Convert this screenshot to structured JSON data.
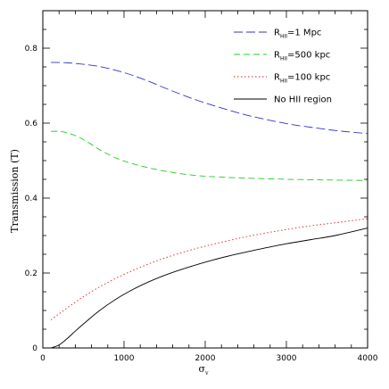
{
  "chart_data": {
    "type": "line",
    "xlabel": "σ",
    "xlabel_sub": "v",
    "ylabel": "Transmission (T)",
    "xlim": [
      0,
      4000
    ],
    "ylim": [
      0,
      0.9
    ],
    "xticks": [
      0,
      1000,
      2000,
      3000,
      4000
    ],
    "yticks": [
      0,
      0.2,
      0.4,
      0.6,
      0.8
    ],
    "ytick_labels": [
      "0",
      "0.2",
      "0.4",
      "0.6",
      "0.8"
    ],
    "grid": false,
    "legend_position": "top-right",
    "series": [
      {
        "name": "R_HII=1 Mpc",
        "legend_prefix": "R",
        "legend_sub": "HII",
        "legend_suffix": "=1  Mpc",
        "color": "#3333cc",
        "dash": "10,4",
        "x": [
          100,
          300,
          500,
          700,
          900,
          1100,
          1300,
          1500,
          1700,
          1900,
          2100,
          2300,
          2500,
          2700,
          2900,
          3100,
          3300,
          3500,
          3700,
          3900,
          4000
        ],
        "y": [
          0.762,
          0.761,
          0.757,
          0.751,
          0.741,
          0.728,
          0.712,
          0.694,
          0.677,
          0.661,
          0.647,
          0.634,
          0.622,
          0.612,
          0.603,
          0.595,
          0.589,
          0.583,
          0.578,
          0.574,
          0.572
        ]
      },
      {
        "name": "R_HII=500 kpc",
        "legend_prefix": "R",
        "legend_sub": "HII",
        "legend_suffix": "=500  kpc",
        "color": "#22cc22",
        "dash": "7,4",
        "x": [
          100,
          200,
          300,
          400,
          500,
          600,
          700,
          900,
          1100,
          1300,
          1500,
          1700,
          1900,
          2100,
          2400,
          2700,
          3000,
          3300,
          3600,
          4000
        ],
        "y": [
          0.578,
          0.578,
          0.574,
          0.567,
          0.556,
          0.543,
          0.529,
          0.507,
          0.492,
          0.481,
          0.472,
          0.465,
          0.46,
          0.457,
          0.454,
          0.452,
          0.45,
          0.449,
          0.448,
          0.447
        ]
      },
      {
        "name": "R_HII=100 kpc",
        "legend_prefix": "R",
        "legend_sub": "HII",
        "legend_suffix": "=100  kpc",
        "color": "#dd2222",
        "dash": "1.5,2.5",
        "x": [
          100,
          200,
          300,
          400,
          500,
          700,
          900,
          1100,
          1300,
          1500,
          1800,
          2100,
          2400,
          2700,
          3000,
          3300,
          3600,
          4000
        ],
        "y": [
          0.075,
          0.091,
          0.107,
          0.122,
          0.137,
          0.163,
          0.186,
          0.206,
          0.224,
          0.24,
          0.26,
          0.277,
          0.292,
          0.305,
          0.316,
          0.326,
          0.334,
          0.345
        ]
      },
      {
        "name": "No HII region",
        "legend_prefix": "No  HII  region",
        "legend_sub": "",
        "legend_suffix": "",
        "color": "#000000",
        "dash": "",
        "x": [
          100,
          200,
          300,
          400,
          500,
          700,
          900,
          1100,
          1300,
          1500,
          1800,
          2100,
          2400,
          2700,
          3000,
          3300,
          3600,
          4000
        ],
        "y": [
          0.0,
          0.008,
          0.025,
          0.045,
          0.064,
          0.1,
          0.13,
          0.155,
          0.176,
          0.194,
          0.216,
          0.235,
          0.251,
          0.265,
          0.278,
          0.289,
          0.3,
          0.32
        ]
      }
    ]
  }
}
